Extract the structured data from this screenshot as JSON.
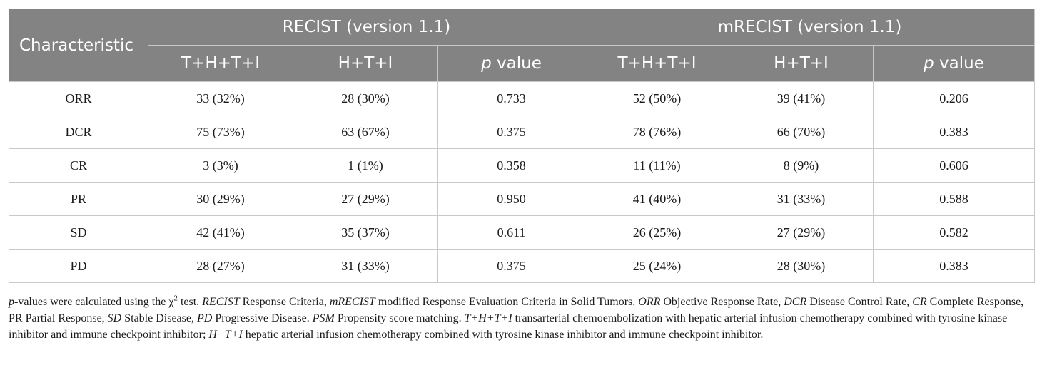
{
  "table": {
    "header": {
      "characteristic": "Characteristic",
      "group_recist": "RECIST (version 1.1)",
      "group_mrecist": "mRECIST (version 1.1)",
      "sub": {
        "col1": "T+H+T+I",
        "col2": "H+T+I",
        "col3_p": "p",
        "col3_rest": " value",
        "col4": "T+H+T+I",
        "col5": "H+T+I",
        "col6_p": "p",
        "col6_rest": " value"
      }
    },
    "rows": [
      {
        "label": "ORR",
        "c1": "33 (32%)",
        "c2": "28 (30%)",
        "c3": "0.733",
        "c4": "52 (50%)",
        "c5": "39 (41%)",
        "c6": "0.206"
      },
      {
        "label": "DCR",
        "c1": "75 (73%)",
        "c2": "63 (67%)",
        "c3": "0.375",
        "c4": "78 (76%)",
        "c5": "66 (70%)",
        "c6": "0.383"
      },
      {
        "label": "CR",
        "c1": "3 (3%)",
        "c2": "1 (1%)",
        "c3": "0.358",
        "c4": "11 (11%)",
        "c5": "8 (9%)",
        "c6": "0.606"
      },
      {
        "label": "PR",
        "c1": "30 (29%)",
        "c2": "27 (29%)",
        "c3": "0.950",
        "c4": "41 (40%)",
        "c5": "31 (33%)",
        "c6": "0.588"
      },
      {
        "label": "SD",
        "c1": "42 (41%)",
        "c2": "35 (37%)",
        "c3": "0.611",
        "c4": "26 (25%)",
        "c5": "27 (29%)",
        "c6": "0.582"
      },
      {
        "label": "PD",
        "c1": "28 (27%)",
        "c2": "31 (33%)",
        "c3": "0.375",
        "c4": "25 (24%)",
        "c5": "28 (30%)",
        "c6": "0.383"
      }
    ]
  },
  "footnote": {
    "s1_i": "p",
    "s1": "-values were calculated using the χ",
    "s1_sup": "2",
    "s2": " test. ",
    "s3_i": "RECIST",
    "s3": " Response Criteria, ",
    "s4_i": "mRECIST",
    "s4": " modified Response Evaluation Criteria in Solid Tumors. ",
    "s5_i": "ORR",
    "s5": " Objective Response Rate, ",
    "s6_i": "DCR",
    "s6": " Disease Control Rate, ",
    "s7_i": "CR",
    "s7": " Complete Response, PR Partial Response, ",
    "s8_i": "SD",
    "s8": " Stable Disease, ",
    "s9_i": "PD",
    "s9": " Progressive Disease. ",
    "s10_i": "PSM",
    "s10": " Propensity score matching. ",
    "s11_i": "T+H+T+I",
    "s11": " transarterial chemoembolization with hepatic arterial infusion chemotherapy combined with tyrosine kinase inhibitor and immune checkpoint inhibitor; ",
    "s12_i": "H+T+I",
    "s12": " hepatic arterial infusion chemotherapy combined with tyrosine kinase inhibitor and immune checkpoint inhibitor."
  }
}
